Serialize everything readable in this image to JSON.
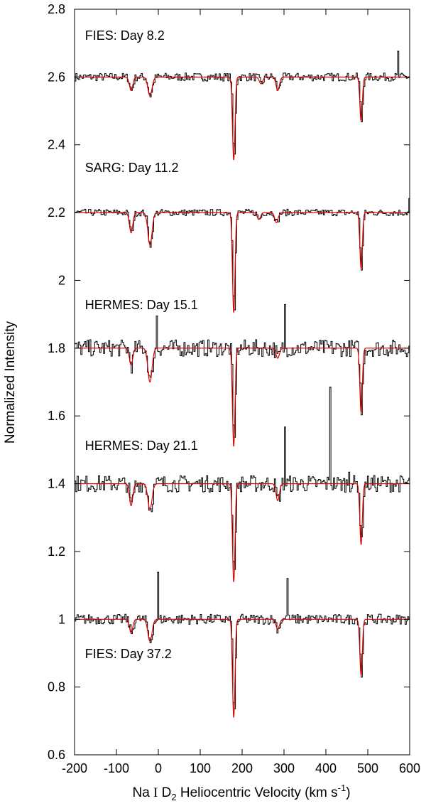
{
  "chart_data": {
    "type": "line",
    "title": "",
    "xlabel": "Na I D2 Heliocentric Velocity (km s-1)",
    "xlabel_parts": {
      "species": "Na ",
      "ion": "I",
      "line": " D",
      "line_sub": "2",
      "rest": " Heliocentric Velocity (km s",
      "unit_sup": "-1",
      "close": ")"
    },
    "ylabel": "Normalized Intensity",
    "xlim": [
      -200,
      600
    ],
    "ylim": [
      0.6,
      2.8
    ],
    "x_ticks": [
      -200,
      -100,
      0,
      100,
      200,
      300,
      400,
      500,
      600
    ],
    "x_tick_labels": [
      "-200",
      "-100",
      "0",
      "100",
      "200",
      "300",
      "400",
      "500",
      "600"
    ],
    "y_ticks": [
      0.6,
      0.8,
      1.0,
      1.2,
      1.4,
      1.6,
      1.8,
      2.0,
      2.2,
      2.4,
      2.6,
      2.8
    ],
    "y_tick_labels": [
      "0.6",
      "0.8",
      "1",
      "1.2",
      "1.4",
      "1.6",
      "1.8",
      "2",
      "2.2",
      "2.4",
      "2.6",
      "2.8"
    ],
    "grid": false,
    "legend": "none",
    "colors": {
      "observed": "#000000",
      "model": "#e00000",
      "axes": "#000000"
    },
    "spectra": [
      {
        "label": "FIES: Day 8.2",
        "label_anchor": {
          "x": -175,
          "y": 2.71
        },
        "continuum": 2.6,
        "noise": 0.012,
        "absorption_lines": [
          {
            "v": -65,
            "depth": 0.04,
            "width": 4
          },
          {
            "v": -20,
            "depth": 0.055,
            "width": 5
          },
          {
            "v": 180,
            "depth": 0.245,
            "width": 3
          },
          {
            "v": 245,
            "depth": 0.02,
            "width": 4
          },
          {
            "v": 285,
            "depth": 0.04,
            "width": 4
          },
          {
            "v": 484,
            "depth": 0.13,
            "width": 3
          }
        ],
        "emission_spikes": [
          {
            "v": 570,
            "height": 0.07
          }
        ]
      },
      {
        "label": "SARG: Day 11.2",
        "label_anchor": {
          "x": -175,
          "y": 2.32
        },
        "continuum": 2.2,
        "noise": 0.01,
        "absorption_lines": [
          {
            "v": -65,
            "depth": 0.06,
            "width": 4
          },
          {
            "v": -20,
            "depth": 0.095,
            "width": 5
          },
          {
            "v": 180,
            "depth": 0.295,
            "width": 3
          },
          {
            "v": 240,
            "depth": 0.02,
            "width": 4
          },
          {
            "v": 282,
            "depth": 0.03,
            "width": 4
          },
          {
            "v": 484,
            "depth": 0.165,
            "width": 3
          }
        ],
        "emission_spikes": [
          {
            "v": 598,
            "height": 0.04
          }
        ]
      },
      {
        "label": "HERMES: Day 15.1",
        "label_anchor": {
          "x": -175,
          "y": 1.915
        },
        "continuum": 1.8,
        "noise": 0.025,
        "absorption_lines": [
          {
            "v": -65,
            "depth": 0.05,
            "width": 4
          },
          {
            "v": -20,
            "depth": 0.1,
            "width": 5
          },
          {
            "v": 180,
            "depth": 0.29,
            "width": 3
          },
          {
            "v": 285,
            "depth": 0.03,
            "width": 4
          },
          {
            "v": 484,
            "depth": 0.19,
            "width": 3
          }
        ],
        "emission_spikes": [
          {
            "v": -5,
            "height": 0.1
          },
          {
            "v": 302,
            "height": 0.12
          }
        ]
      },
      {
        "label": "HERMES: Day 21.1",
        "label_anchor": {
          "x": -175,
          "y": 1.5
        },
        "continuum": 1.4,
        "noise": 0.025,
        "absorption_lines": [
          {
            "v": -65,
            "depth": 0.065,
            "width": 4
          },
          {
            "v": -20,
            "depth": 0.075,
            "width": 5
          },
          {
            "v": 180,
            "depth": 0.29,
            "width": 3
          },
          {
            "v": 285,
            "depth": 0.05,
            "width": 4
          },
          {
            "v": 484,
            "depth": 0.18,
            "width": 3
          }
        ],
        "emission_spikes": [
          {
            "v": 302,
            "height": 0.17
          },
          {
            "v": 410,
            "height": 0.3
          },
          {
            "v": 455,
            "height": 0.05
          }
        ]
      },
      {
        "label": "FIES: Day 37.2",
        "label_anchor": {
          "x": -175,
          "y": 0.885
        },
        "continuum": 1.0,
        "noise": 0.015,
        "absorption_lines": [
          {
            "v": -65,
            "depth": 0.04,
            "width": 4
          },
          {
            "v": -20,
            "depth": 0.065,
            "width": 5
          },
          {
            "v": 180,
            "depth": 0.29,
            "width": 3
          },
          {
            "v": 285,
            "depth": 0.03,
            "width": 4
          },
          {
            "v": 484,
            "depth": 0.165,
            "width": 3
          }
        ],
        "emission_spikes": [
          {
            "v": -2,
            "height": 0.13
          },
          {
            "v": 307,
            "height": 0.13
          }
        ]
      }
    ]
  }
}
